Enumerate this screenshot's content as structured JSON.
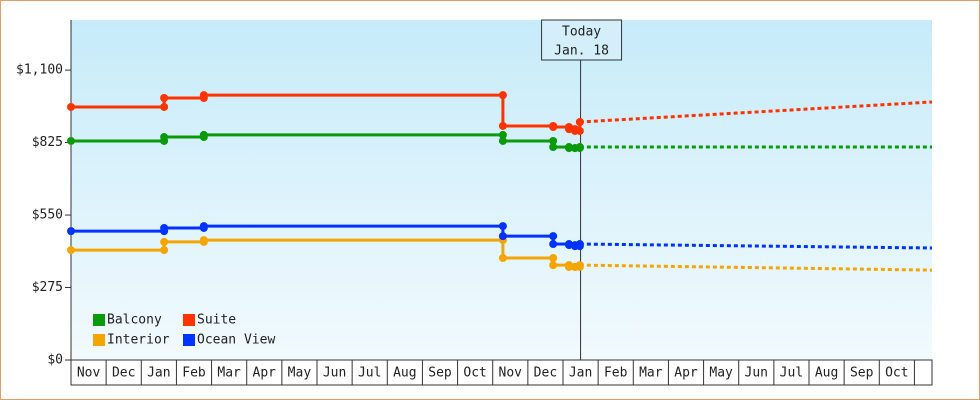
{
  "chart_data": {
    "type": "step-line",
    "yticks": [
      {
        "value": 0,
        "label": "$0"
      },
      {
        "value": 275,
        "label": "$275"
      },
      {
        "value": 550,
        "label": "$550"
      },
      {
        "value": 825,
        "label": "$825"
      },
      {
        "value": 1100,
        "label": "$1,100"
      }
    ],
    "ylim": [
      0,
      1290
    ],
    "xlim": [
      0,
      24.5
    ],
    "xticks": [
      {
        "value": 0.5,
        "label": "Nov"
      },
      {
        "value": 1.5,
        "label": "Dec"
      },
      {
        "value": 2.5,
        "label": "Jan"
      },
      {
        "value": 3.5,
        "label": "Feb"
      },
      {
        "value": 4.5,
        "label": "Mar"
      },
      {
        "value": 5.5,
        "label": "Apr"
      },
      {
        "value": 6.5,
        "label": "May"
      },
      {
        "value": 7.5,
        "label": "Jun"
      },
      {
        "value": 8.5,
        "label": "Jul"
      },
      {
        "value": 9.5,
        "label": "Aug"
      },
      {
        "value": 10.5,
        "label": "Sep"
      },
      {
        "value": 11.5,
        "label": "Oct"
      },
      {
        "value": 12.5,
        "label": "Nov"
      },
      {
        "value": 13.5,
        "label": "Dec"
      },
      {
        "value": 14.5,
        "label": "Jan"
      },
      {
        "value": 15.5,
        "label": "Feb"
      },
      {
        "value": 16.5,
        "label": "Mar"
      },
      {
        "value": 17.5,
        "label": "Apr"
      },
      {
        "value": 18.5,
        "label": "May"
      },
      {
        "value": 19.5,
        "label": "Jun"
      },
      {
        "value": 20.5,
        "label": "Jul"
      },
      {
        "value": 21.5,
        "label": "Aug"
      },
      {
        "value": 22.5,
        "label": "Sep"
      },
      {
        "value": 23.5,
        "label": "Oct"
      }
    ],
    "x": [
      0,
      2.65,
      3.78,
      12.29,
      13.72,
      14.17,
      14.34,
      14.48
    ],
    "forecast_x": [
      14.48,
      24.5
    ],
    "series": [
      {
        "name": "Balcony",
        "color": "#0a9a0a",
        "values": [
          831,
          846,
          854,
          831,
          808,
          804,
          804,
          808
        ],
        "forecast": [
          808,
          808
        ]
      },
      {
        "name": "Suite",
        "color": "#ff3300",
        "values": [
          960,
          994,
          1005,
          888,
          884,
          876,
          869,
          903
        ],
        "forecast": [
          903,
          979
        ]
      },
      {
        "name": "Interior",
        "color": "#f5a500",
        "values": [
          417,
          448,
          455,
          387,
          360,
          353,
          353,
          360
        ],
        "forecast": [
          360,
          341
        ]
      },
      {
        "name": "Ocean View",
        "color": "#0033ff",
        "values": [
          489,
          501,
          508,
          470,
          440,
          436,
          432,
          440
        ],
        "forecast": [
          440,
          425
        ]
      }
    ],
    "today": {
      "x": 14.5,
      "lines": [
        "Today",
        "Jan. 18"
      ]
    },
    "legend": "bottom-left",
    "grid": false
  }
}
